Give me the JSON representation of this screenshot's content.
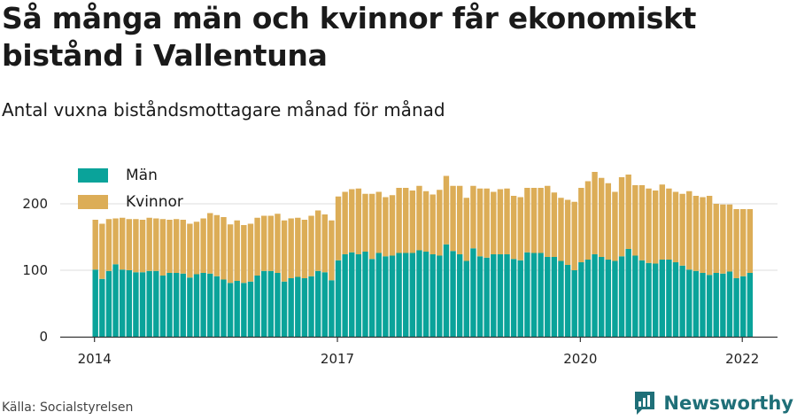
{
  "header": {
    "title": "Så många män och kvinnor får ekonomiskt bistånd i Vallentuna",
    "subtitle": "Antal vuxna biståndsmottagare månad för månad"
  },
  "footer": {
    "source": "Källa: Socialstyrelsen",
    "brand": "Newsworthy"
  },
  "colors": {
    "man": "#0aa39a",
    "kvinnor": "#dcad57",
    "grid": "#dddddd",
    "axis": "#333333"
  },
  "chart_data": {
    "type": "bar",
    "stacked": true,
    "x_start": "2014-01",
    "x_ticks": [
      "2014",
      "2017",
      "2020",
      "2022"
    ],
    "y_ticks": [
      0,
      100,
      200
    ],
    "ylim": [
      0,
      250
    ],
    "legend_position": "top-left",
    "series": [
      {
        "name": "Män",
        "values": [
          101,
          87,
          99,
          109,
          101,
          100,
          97,
          97,
          99,
          99,
          92,
          96,
          96,
          95,
          89,
          94,
          96,
          95,
          91,
          86,
          81,
          84,
          81,
          83,
          92,
          99,
          99,
          96,
          83,
          88,
          90,
          88,
          91,
          99,
          97,
          85,
          115,
          124,
          127,
          124,
          128,
          117,
          126,
          121,
          122,
          126,
          126,
          126,
          130,
          128,
          124,
          122,
          139,
          129,
          124,
          114,
          133,
          121,
          119,
          124,
          124,
          124,
          117,
          115,
          127,
          126,
          126,
          120,
          120,
          114,
          108,
          100,
          112,
          116,
          124,
          120,
          116,
          114,
          121,
          132,
          122,
          115,
          111,
          110,
          116,
          116,
          112,
          107,
          101,
          99,
          96,
          93,
          96,
          95,
          98,
          88,
          91,
          96
        ],
        "color": "#0aa39a"
      },
      {
        "name": "Kvinnor",
        "values": [
          75,
          83,
          78,
          69,
          78,
          77,
          80,
          79,
          80,
          79,
          85,
          80,
          81,
          81,
          81,
          79,
          82,
          91,
          92,
          94,
          88,
          91,
          87,
          87,
          87,
          83,
          83,
          89,
          92,
          90,
          89,
          88,
          91,
          91,
          87,
          90,
          96,
          94,
          95,
          99,
          87,
          98,
          92,
          89,
          91,
          98,
          98,
          94,
          97,
          91,
          90,
          99,
          103,
          98,
          103,
          95,
          94,
          102,
          104,
          94,
          98,
          99,
          95,
          95,
          97,
          98,
          98,
          107,
          97,
          95,
          98,
          103,
          112,
          118,
          124,
          119,
          115,
          104,
          119,
          112,
          106,
          113,
          112,
          110,
          113,
          107,
          106,
          108,
          118,
          113,
          114,
          119,
          104,
          104,
          101,
          104,
          101,
          96
        ],
        "color": "#dcad57"
      }
    ]
  }
}
